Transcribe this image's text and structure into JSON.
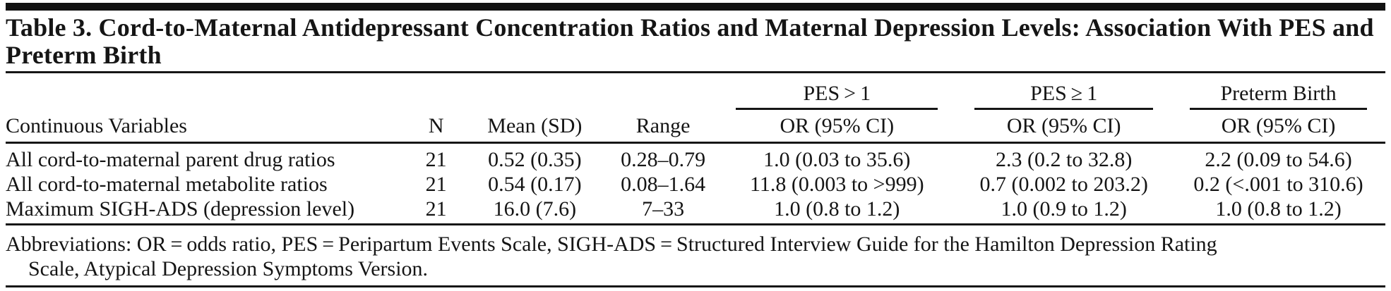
{
  "table": {
    "title": "Table 3. Cord-to-Maternal Antidepressant Concentration Ratios and Maternal Depression Levels: Association With PES and Preterm Birth",
    "spanners": {
      "pes_gt1": "PES > 1",
      "pes_ge1": "PES ≥ 1",
      "preterm_birth": "Preterm Birth"
    },
    "headers": {
      "variables": "Continuous Variables",
      "n": "N",
      "mean_sd": "Mean (SD)",
      "range": "Range",
      "or_ci": "OR (95% CI)"
    },
    "rows": [
      {
        "label": "All cord-to-maternal parent drug ratios",
        "n": "21",
        "mean_sd": "0.52 (0.35)",
        "range": "0.28–0.79",
        "pes_gt1": "1.0 (0.03 to 35.6)",
        "pes_ge1": "2.3 (0.2 to 32.8)",
        "preterm_birth": "2.2 (0.09 to 54.6)"
      },
      {
        "label": "All cord-to-maternal metabolite ratios",
        "n": "21",
        "mean_sd": "0.54 (0.17)",
        "range": "0.08–1.64",
        "pes_gt1": "11.8 (0.003 to >999)",
        "pes_ge1": "0.7 (0.002 to 203.2)",
        "preterm_birth": "0.2 (<.001 to 310.6)"
      },
      {
        "label": "Maximum SIGH-ADS (depression level)",
        "n": "21",
        "mean_sd": "16.0 (7.6)",
        "range": "7–33",
        "pes_gt1": "1.0 (0.8 to 1.2)",
        "pes_ge1": "1.0 (0.9 to 1.2)",
        "preterm_birth": "1.0 (0.8 to 1.2)"
      }
    ],
    "footnote_lines": {
      "line1": "Abbreviations: OR = odds ratio, PES = Peripartum Events Scale, SIGH-ADS = Structured Interview Guide for the Hamilton Depression Rating",
      "line2": "Scale, Atypical Depression Symptoms Version."
    }
  },
  "colors": {
    "text": "#151515",
    "rule": "#161616",
    "background": "#ffffff"
  }
}
